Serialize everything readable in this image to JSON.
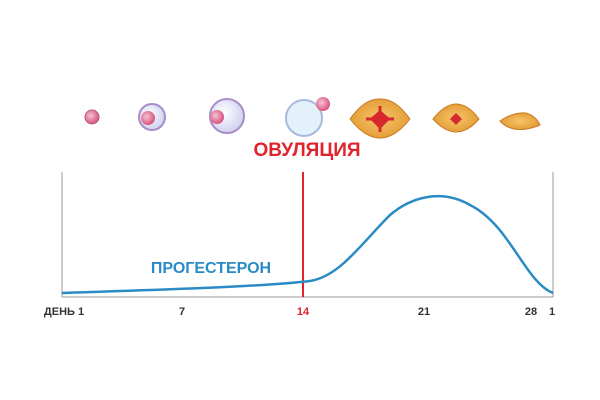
{
  "ovulation_label": "ОВУЛЯЦИЯ",
  "curve_label": "ПРОГЕСТЕРОН",
  "x_axis": {
    "labels": [
      "ДЕНЬ 1",
      "7",
      "14",
      "21",
      "28",
      "1"
    ]
  }
}
